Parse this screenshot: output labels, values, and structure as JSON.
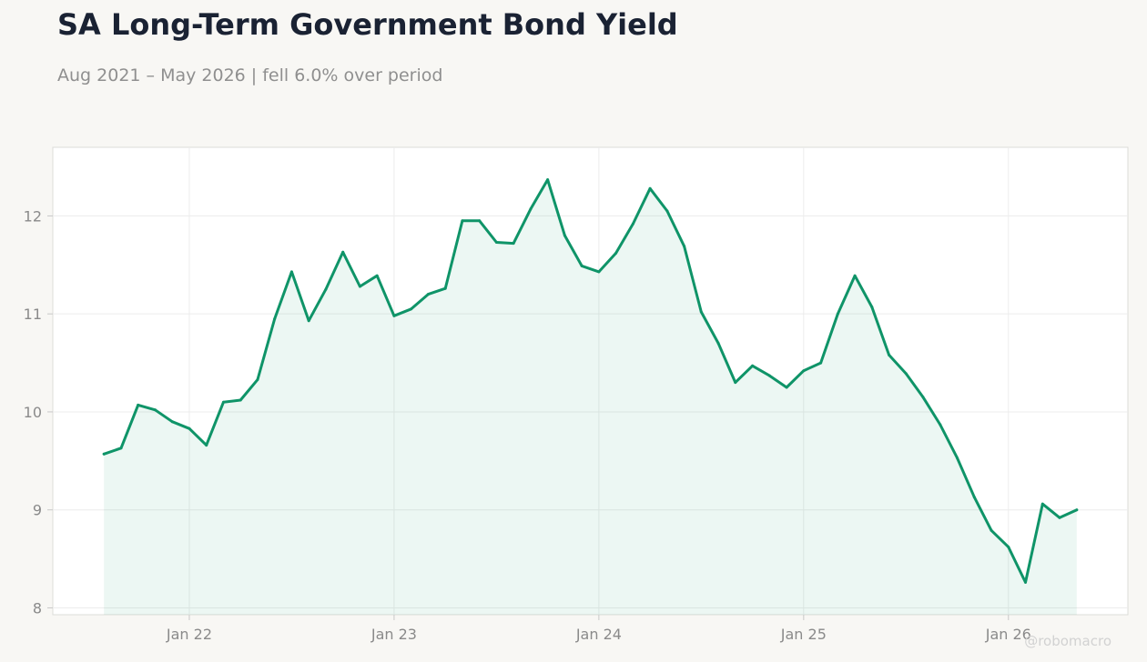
{
  "header": {
    "title": "SA Long-Term Government Bond Yield",
    "subtitle": "Aug 2021 – May 2026 | fell 6.0% over period"
  },
  "watermark": "@robomacro",
  "colors": {
    "line": "#0f9468",
    "fill": "#0f9468",
    "background": "#f8f7f4",
    "plot_background": "#ffffff",
    "grid": "#ececec",
    "text_muted": "#8a8a8a",
    "title": "#1a2233"
  },
  "chart_data": {
    "type": "area",
    "title": "SA Long-Term Government Bond Yield",
    "subtitle": "Aug 2021 – May 2026 | fell 6.0% over period",
    "xlabel": "",
    "ylabel": "",
    "x_ticks": [
      "Jan 22",
      "Jan 23",
      "Jan 24",
      "Jan 25",
      "Jan 26"
    ],
    "x_tick_dates": [
      "2022-01",
      "2023-01",
      "2024-01",
      "2025-01",
      "2026-01"
    ],
    "y_ticks": [
      8,
      9,
      10,
      11,
      12
    ],
    "xlim": [
      "2021-05",
      "2026-08"
    ],
    "ylim": [
      7.93,
      12.7
    ],
    "grid": true,
    "legend": "none",
    "series": [
      {
        "x": [
          "2021-08",
          "2021-09",
          "2021-10",
          "2021-11",
          "2021-12",
          "2022-01",
          "2022-02",
          "2022-03",
          "2022-04",
          "2022-05",
          "2022-06",
          "2022-07",
          "2022-08",
          "2022-09",
          "2022-10",
          "2022-11",
          "2022-12",
          "2023-01",
          "2023-02",
          "2023-03",
          "2023-04",
          "2023-05",
          "2023-06",
          "2023-07",
          "2023-08",
          "2023-09",
          "2023-10",
          "2023-11",
          "2023-12",
          "2024-01",
          "2024-02",
          "2024-03",
          "2024-04",
          "2024-05",
          "2024-06",
          "2024-07",
          "2024-08",
          "2024-09",
          "2024-10",
          "2024-11",
          "2024-12",
          "2025-01",
          "2025-02",
          "2025-03",
          "2025-04",
          "2025-05",
          "2025-06",
          "2025-07",
          "2025-08",
          "2025-09",
          "2025-10",
          "2025-11",
          "2025-12",
          "2026-01",
          "2026-02",
          "2026-03",
          "2026-04",
          "2026-05"
        ],
        "y": [
          9.57,
          9.63,
          10.07,
          10.02,
          9.9,
          9.83,
          9.66,
          10.1,
          10.12,
          10.33,
          10.95,
          11.43,
          10.93,
          11.25,
          11.63,
          11.28,
          11.39,
          10.98,
          11.05,
          11.2,
          11.26,
          11.95,
          11.95,
          11.73,
          11.72,
          12.07,
          12.37,
          11.8,
          11.49,
          11.43,
          11.62,
          11.92,
          12.28,
          12.05,
          11.69,
          11.02,
          10.7,
          10.3,
          10.47,
          10.37,
          10.25,
          10.42,
          10.5,
          11.0,
          11.39,
          11.07,
          10.58,
          10.39,
          10.15,
          9.87,
          9.53,
          9.13,
          8.79,
          8.62,
          8.26,
          9.06,
          8.92,
          9.0
        ]
      }
    ]
  }
}
